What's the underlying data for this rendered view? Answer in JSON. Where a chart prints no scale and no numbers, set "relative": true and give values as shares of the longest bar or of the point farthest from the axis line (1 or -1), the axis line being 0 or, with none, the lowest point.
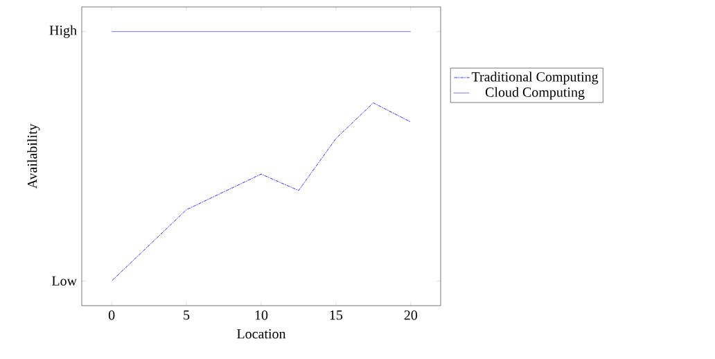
{
  "chart_data": {
    "type": "line",
    "xlabel": "Location",
    "ylabel": "Availability",
    "xlim": [
      -2,
      22
    ],
    "xticks": [
      0,
      5,
      10,
      15,
      20
    ],
    "annotations": [
      "Low",
      "High"
    ],
    "relative": true,
    "legend": "right",
    "grid": false,
    "marker": "none",
    "series": [
      {
        "name": "Traditional Computing",
        "color": "#0000ff",
        "line_style": "dashdot",
        "x": [
          0,
          5,
          10,
          12.5,
          15,
          17.5,
          20
        ],
        "values": [
          0.09,
          0.35,
          0.48,
          0.42,
          0.61,
          0.74,
          0.67
        ]
      },
      {
        "name": "Cloud Computing",
        "color": "#0000ff",
        "line_style": "solid",
        "x": [
          0,
          20
        ],
        "values": [
          1,
          1
        ]
      }
    ]
  }
}
